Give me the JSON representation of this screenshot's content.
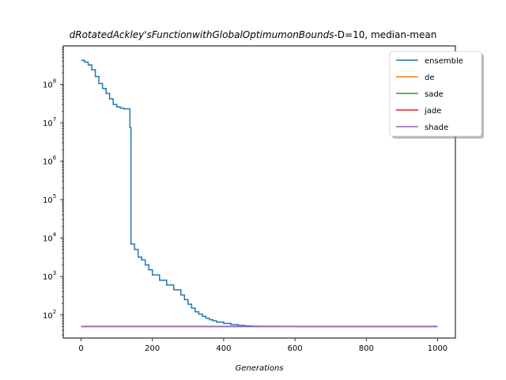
{
  "chart_data": {
    "type": "line",
    "title_italic": "dRotatedAckley'sFunctionwithGlobalOptimumonBounds",
    "title_rest": "-D=10, median-mean",
    "xlabel": "Generations",
    "ylabel": "",
    "xlim": [
      -50,
      1050
    ],
    "ylim": [
      25,
      1000000000
    ],
    "yscale": "log",
    "xticks": [
      0,
      200,
      400,
      600,
      800,
      1000
    ],
    "xtick_labels": [
      "0",
      "200",
      "400",
      "600",
      "800",
      "1000"
    ],
    "yticks": [
      100,
      1000,
      10000,
      100000,
      1000000,
      10000000,
      100000000
    ],
    "ytick_labels": [
      {
        "base": "10",
        "exp": "2"
      },
      {
        "base": "10",
        "exp": "3"
      },
      {
        "base": "10",
        "exp": "4"
      },
      {
        "base": "10",
        "exp": "5"
      },
      {
        "base": "10",
        "exp": "6"
      },
      {
        "base": "10",
        "exp": "7"
      },
      {
        "base": "10",
        "exp": "8"
      }
    ],
    "grid": false,
    "legend_position": "top-right",
    "series": [
      {
        "name": "ensemble",
        "color": "#1f77b4",
        "step": true,
        "x": [
          0,
          10,
          20,
          30,
          40,
          50,
          60,
          70,
          80,
          90,
          100,
          110,
          120,
          136,
          137,
          140,
          150,
          160,
          170,
          180,
          190,
          200,
          220,
          240,
          260,
          280,
          290,
          300,
          310,
          320,
          330,
          340,
          350,
          360,
          370,
          380,
          400,
          420,
          440,
          460,
          480,
          500,
          550,
          600,
          700,
          800,
          1000
        ],
        "values": [
          420000000,
          380000000,
          320000000,
          240000000,
          160000000,
          105000000,
          78000000,
          58000000,
          42000000,
          30000000,
          26000000,
          24000000,
          23000000,
          23000000,
          7500000,
          7000,
          5000,
          3200,
          2700,
          2000,
          1500,
          1100,
          800,
          600,
          450,
          330,
          250,
          190,
          150,
          120,
          105,
          92,
          82,
          75,
          70,
          65,
          60,
          56,
          53,
          51.5,
          51,
          50.5,
          50.2,
          50.1,
          50,
          50,
          50
        ]
      },
      {
        "name": "de",
        "color": "#ff7f0e",
        "step": true,
        "x": [
          0,
          1000
        ],
        "values": [
          50,
          50
        ]
      },
      {
        "name": "sade",
        "color": "#2ca02c",
        "step": true,
        "x": [
          0,
          1000
        ],
        "values": [
          50,
          50
        ]
      },
      {
        "name": "jade",
        "color": "#d62728",
        "step": true,
        "x": [
          0,
          1000
        ],
        "values": [
          50,
          50
        ]
      },
      {
        "name": "shade",
        "color": "#9467bd",
        "step": true,
        "x": [
          0,
          1000
        ],
        "values": [
          50,
          50
        ]
      }
    ]
  }
}
